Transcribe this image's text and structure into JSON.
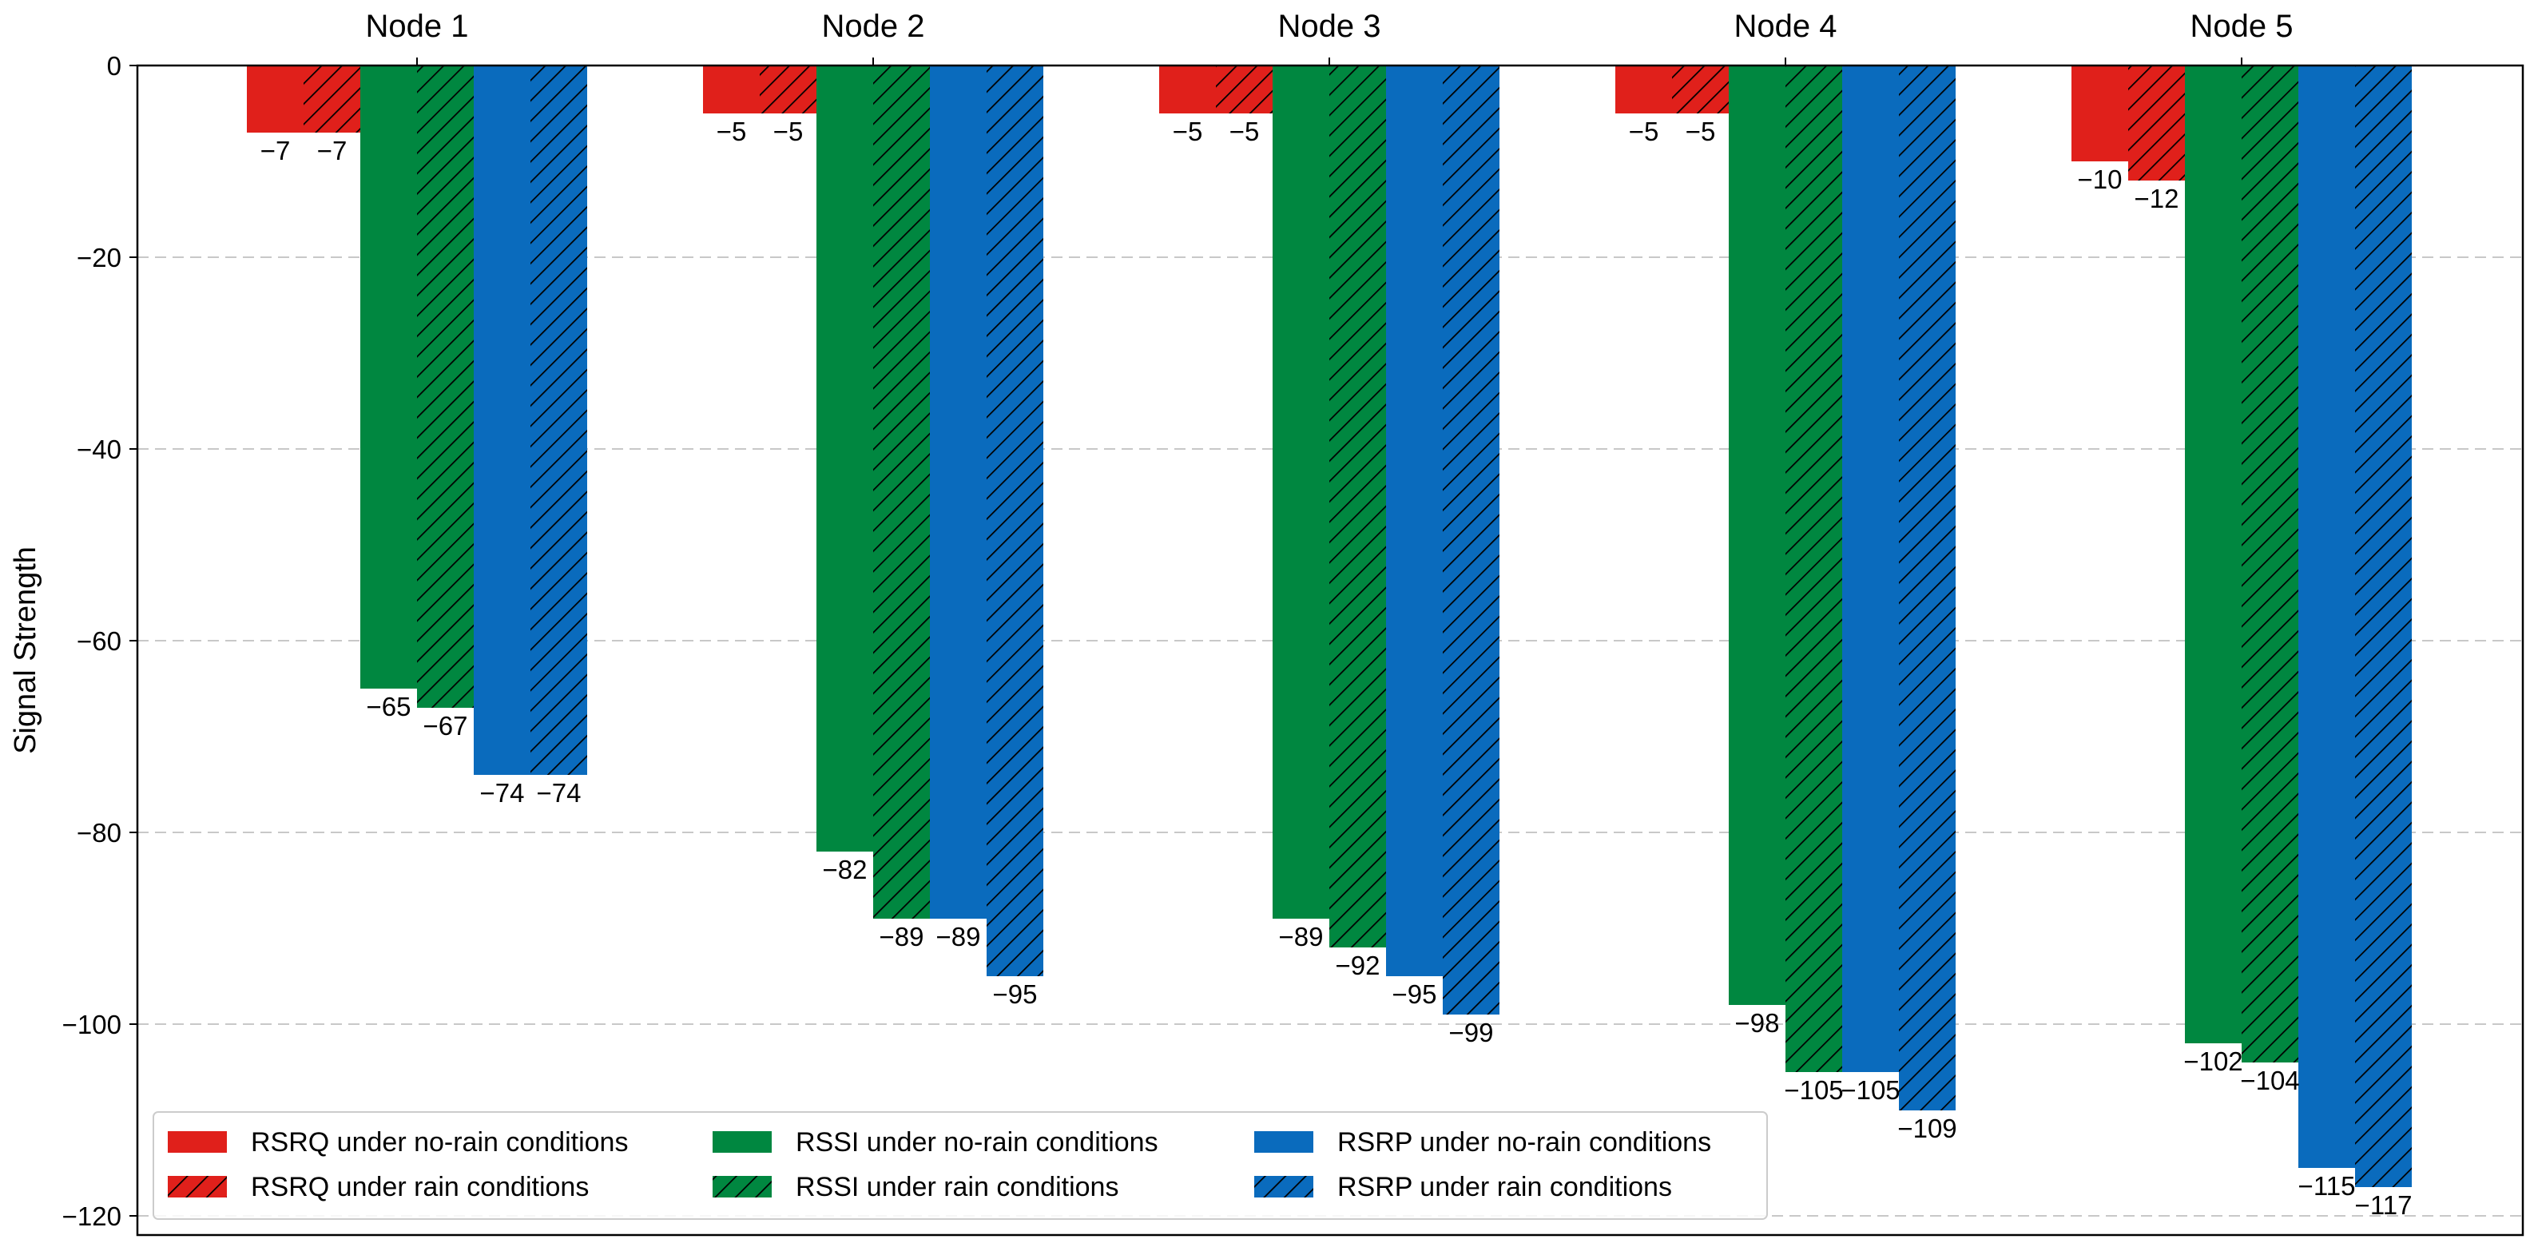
{
  "chart_data": {
    "type": "bar",
    "ylabel": "Signal Strength",
    "ylim": [
      -122,
      0
    ],
    "yticks": [
      0,
      -20,
      -40,
      -60,
      -80,
      -100,
      -120
    ],
    "ytick_labels": [
      "0",
      "−20",
      "−40",
      "−60",
      "−80",
      "−100",
      "−120"
    ],
    "grid": "horizontal dashed",
    "legend_placement": "bottom-left, 3 columns",
    "categories": [
      "Node 1",
      "Node 2",
      "Node 3",
      "Node 4",
      "Node 5"
    ],
    "series": [
      {
        "name": "RSRQ under no-rain conditions",
        "color": "#e0201b",
        "hatch": false,
        "values": [
          -7,
          -5,
          -5,
          -5,
          -10
        ],
        "labels": [
          "−7",
          "−5",
          "−5",
          "−5",
          "−10"
        ]
      },
      {
        "name": "RSRQ under rain conditions",
        "color": "#e0201b",
        "hatch": true,
        "values": [
          -7,
          -5,
          -5,
          -5,
          -12
        ],
        "labels": [
          "−7",
          "−5",
          "−5",
          "−5",
          "−12"
        ]
      },
      {
        "name": "RSSI under no-rain conditions",
        "color": "#008740",
        "hatch": false,
        "values": [
          -65,
          -82,
          -89,
          -98,
          -102
        ],
        "labels": [
          "−65",
          "−82",
          "−89",
          "−98",
          "−102"
        ]
      },
      {
        "name": "RSSI under rain conditions",
        "color": "#008740",
        "hatch": true,
        "values": [
          -67,
          -89,
          -92,
          -105,
          -104
        ],
        "labels": [
          "−67",
          "−89",
          "−92",
          "−105",
          "−104"
        ]
      },
      {
        "name": "RSRP under no-rain conditions",
        "color": "#0a6bbd",
        "hatch": false,
        "values": [
          -74,
          -89,
          -95,
          -105,
          -115
        ],
        "labels": [
          "−74",
          "−89",
          "−95",
          "−105",
          "−115"
        ]
      },
      {
        "name": "RSRP under rain conditions",
        "color": "#0a6bbd",
        "hatch": true,
        "values": [
          -74,
          -95,
          -99,
          -109,
          -117
        ],
        "labels": [
          "−74",
          "−95",
          "−99",
          "−109",
          "−117"
        ]
      }
    ]
  }
}
